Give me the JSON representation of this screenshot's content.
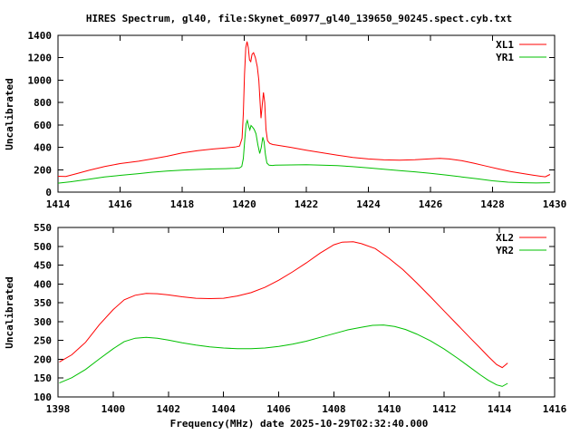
{
  "title": "HIRES Spectrum, gl40, file:Skynet_60977_gl40_139650_90245.spect.cyb.txt",
  "colors": {
    "red": "#ff0000",
    "green": "#00c000",
    "text": "#000000",
    "background": "#ffffff"
  },
  "chart_data": [
    {
      "type": "line",
      "panel": "top",
      "ylabel": "Uncalibrated",
      "xlabel": "",
      "xlim": [
        1414,
        1430
      ],
      "ylim": [
        0,
        1400
      ],
      "xticks": [
        1414,
        1416,
        1418,
        1420,
        1422,
        1424,
        1426,
        1428,
        1430
      ],
      "yticks": [
        0,
        200,
        400,
        600,
        800,
        1000,
        1200,
        1400
      ],
      "grid": false,
      "legend_position": "top-right-inside",
      "series": [
        {
          "name": "XL1",
          "color": "#ff0000",
          "points": [
            [
              1414.0,
              142
            ],
            [
              1414.25,
              140
            ],
            [
              1414.6,
              165
            ],
            [
              1415,
              195
            ],
            [
              1415.5,
              228
            ],
            [
              1416,
              255
            ],
            [
              1416.6,
              276
            ],
            [
              1417,
              295
            ],
            [
              1417.5,
              320
            ],
            [
              1418,
              350
            ],
            [
              1418.5,
              370
            ],
            [
              1419,
              385
            ],
            [
              1419.4,
              395
            ],
            [
              1419.7,
              402
            ],
            [
              1419.85,
              412
            ],
            [
              1419.93,
              480
            ],
            [
              1419.97,
              700
            ],
            [
              1420.01,
              1050
            ],
            [
              1420.05,
              1290
            ],
            [
              1420.09,
              1345
            ],
            [
              1420.13,
              1290
            ],
            [
              1420.17,
              1180
            ],
            [
              1420.21,
              1165
            ],
            [
              1420.25,
              1230
            ],
            [
              1420.3,
              1245
            ],
            [
              1420.36,
              1200
            ],
            [
              1420.42,
              1120
            ],
            [
              1420.47,
              1000
            ],
            [
              1420.51,
              800
            ],
            [
              1420.54,
              660
            ],
            [
              1420.58,
              780
            ],
            [
              1420.62,
              890
            ],
            [
              1420.66,
              800
            ],
            [
              1420.7,
              560
            ],
            [
              1420.75,
              460
            ],
            [
              1420.82,
              435
            ],
            [
              1420.92,
              425
            ],
            [
              1421.0,
              422
            ],
            [
              1421.5,
              400
            ],
            [
              1422,
              375
            ],
            [
              1422.5,
              352
            ],
            [
              1423,
              330
            ],
            [
              1423.5,
              310
            ],
            [
              1424,
              296
            ],
            [
              1424.5,
              288
            ],
            [
              1425,
              286
            ],
            [
              1425.5,
              290
            ],
            [
              1426,
              298
            ],
            [
              1426.3,
              301
            ],
            [
              1426.6,
              296
            ],
            [
              1427,
              281
            ],
            [
              1427.4,
              258
            ],
            [
              1427.8,
              232
            ],
            [
              1428.2,
              206
            ],
            [
              1428.6,
              183
            ],
            [
              1429,
              165
            ],
            [
              1429.3,
              152
            ],
            [
              1429.55,
              142
            ],
            [
              1429.7,
              137
            ],
            [
              1429.85,
              158
            ]
          ]
        },
        {
          "name": "YR1",
          "color": "#00c000",
          "points": [
            [
              1414.0,
              80
            ],
            [
              1414.4,
              92
            ],
            [
              1415,
              115
            ],
            [
              1415.5,
              135
            ],
            [
              1416,
              150
            ],
            [
              1416.6,
              165
            ],
            [
              1417,
              177
            ],
            [
              1417.5,
              188
            ],
            [
              1418,
              196
            ],
            [
              1418.5,
              202
            ],
            [
              1419,
              207
            ],
            [
              1419.4,
              210
            ],
            [
              1419.7,
              213
            ],
            [
              1419.85,
              216
            ],
            [
              1419.92,
              230
            ],
            [
              1419.97,
              300
            ],
            [
              1420.02,
              480
            ],
            [
              1420.06,
              610
            ],
            [
              1420.1,
              640
            ],
            [
              1420.14,
              590
            ],
            [
              1420.18,
              555
            ],
            [
              1420.22,
              595
            ],
            [
              1420.27,
              580
            ],
            [
              1420.32,
              560
            ],
            [
              1420.38,
              520
            ],
            [
              1420.44,
              420
            ],
            [
              1420.5,
              345
            ],
            [
              1420.55,
              400
            ],
            [
              1420.6,
              490
            ],
            [
              1420.64,
              450
            ],
            [
              1420.68,
              340
            ],
            [
              1420.73,
              260
            ],
            [
              1420.8,
              240
            ],
            [
              1420.9,
              238
            ],
            [
              1421,
              240
            ],
            [
              1421.5,
              243
            ],
            [
              1422,
              244
            ],
            [
              1422.5,
              241
            ],
            [
              1423,
              236
            ],
            [
              1423.5,
              227
            ],
            [
              1424,
              216
            ],
            [
              1424.5,
              205
            ],
            [
              1425,
              193
            ],
            [
              1425.5,
              181
            ],
            [
              1426,
              168
            ],
            [
              1426.5,
              153
            ],
            [
              1427,
              136
            ],
            [
              1427.5,
              119
            ],
            [
              1428,
              101
            ],
            [
              1428.5,
              89
            ],
            [
              1429,
              84
            ],
            [
              1429.4,
              82
            ],
            [
              1429.85,
              84
            ]
          ]
        }
      ]
    },
    {
      "type": "line",
      "panel": "bottom",
      "ylabel": "Uncalibrated",
      "xlabel": "Frequency(MHz) date 2025-10-29T02:32:40.000",
      "xlim": [
        1398,
        1416
      ],
      "ylim": [
        100,
        550
      ],
      "xticks": [
        1398,
        1400,
        1402,
        1404,
        1406,
        1408,
        1410,
        1412,
        1414,
        1416
      ],
      "yticks": [
        100,
        150,
        200,
        250,
        300,
        350,
        400,
        450,
        500,
        550
      ],
      "grid": false,
      "legend_position": "top-right-inside",
      "series": [
        {
          "name": "XL2",
          "color": "#ff0000",
          "points": [
            [
              1398.05,
              193
            ],
            [
              1398.5,
              212
            ],
            [
              1399,
              245
            ],
            [
              1399.5,
              292
            ],
            [
              1400,
              332
            ],
            [
              1400.4,
              358
            ],
            [
              1400.8,
              370
            ],
            [
              1401.2,
              375
            ],
            [
              1401.6,
              374
            ],
            [
              1402,
              371
            ],
            [
              1402.5,
              366
            ],
            [
              1403,
              362
            ],
            [
              1403.5,
              361
            ],
            [
              1404,
              362
            ],
            [
              1404.5,
              368
            ],
            [
              1405,
              377
            ],
            [
              1405.5,
              391
            ],
            [
              1406,
              410
            ],
            [
              1406.5,
              432
            ],
            [
              1407,
              456
            ],
            [
              1407.5,
              482
            ],
            [
              1408,
              504
            ],
            [
              1408.3,
              511
            ],
            [
              1408.7,
              512
            ],
            [
              1409,
              507
            ],
            [
              1409.5,
              494
            ],
            [
              1410,
              468
            ],
            [
              1410.5,
              438
            ],
            [
              1411,
              403
            ],
            [
              1411.5,
              366
            ],
            [
              1412,
              328
            ],
            [
              1412.5,
              290
            ],
            [
              1413,
              252
            ],
            [
              1413.3,
              230
            ],
            [
              1413.6,
              207
            ],
            [
              1413.9,
              186
            ],
            [
              1414.1,
              178
            ],
            [
              1414.3,
              190
            ]
          ]
        },
        {
          "name": "YR2",
          "color": "#00c000",
          "points": [
            [
              1398.05,
              137
            ],
            [
              1398.5,
              151
            ],
            [
              1399,
              173
            ],
            [
              1399.5,
              201
            ],
            [
              1400,
              228
            ],
            [
              1400.4,
              247
            ],
            [
              1400.8,
              256
            ],
            [
              1401.2,
              258
            ],
            [
              1401.6,
              256
            ],
            [
              1402,
              251
            ],
            [
              1402.5,
              244
            ],
            [
              1403,
              238
            ],
            [
              1403.5,
              233
            ],
            [
              1404,
              230
            ],
            [
              1404.5,
              228
            ],
            [
              1405,
              228
            ],
            [
              1405.5,
              230
            ],
            [
              1406,
              234
            ],
            [
              1406.5,
              240
            ],
            [
              1407,
              248
            ],
            [
              1407.5,
              258
            ],
            [
              1408,
              268
            ],
            [
              1408.5,
              278
            ],
            [
              1409,
              285
            ],
            [
              1409.4,
              290
            ],
            [
              1409.8,
              291
            ],
            [
              1410.2,
              287
            ],
            [
              1410.6,
              279
            ],
            [
              1411,
              267
            ],
            [
              1411.5,
              249
            ],
            [
              1412,
              227
            ],
            [
              1412.5,
              202
            ],
            [
              1413,
              175
            ],
            [
              1413.3,
              159
            ],
            [
              1413.6,
              144
            ],
            [
              1413.9,
              132
            ],
            [
              1414.1,
              128
            ],
            [
              1414.3,
              136
            ]
          ]
        }
      ]
    }
  ]
}
